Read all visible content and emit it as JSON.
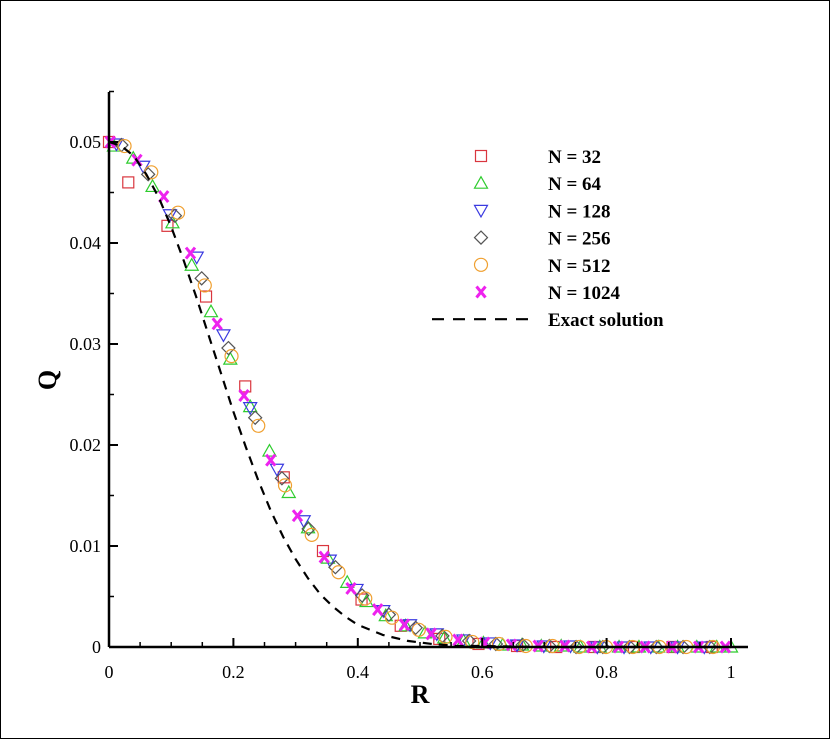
{
  "chart_data": {
    "type": "scatter",
    "title": "",
    "xlabel": "R",
    "ylabel": "Q",
    "xlim": [
      0,
      1
    ],
    "ylim": [
      0,
      0.05
    ],
    "xticks": [
      "0",
      "0.2",
      "0.4",
      "0.6",
      "0.8",
      "1"
    ],
    "yticks": [
      "0",
      "0.01",
      "0.02",
      "0.03",
      "0.04",
      "0.05"
    ],
    "legend_position": "top-right",
    "series": [
      {
        "name": "N = 32",
        "marker": "square",
        "color": "#d9363e",
        "points": [
          [
            0.0,
            0.05
          ],
          [
            0.031,
            0.046
          ],
          [
            0.094,
            0.0417
          ],
          [
            0.156,
            0.0347
          ],
          [
            0.219,
            0.0258
          ],
          [
            0.281,
            0.0168
          ],
          [
            0.344,
            0.0095
          ],
          [
            0.406,
            0.0047
          ],
          [
            0.469,
            0.0021
          ],
          [
            0.531,
            0.0008
          ],
          [
            0.594,
            0.0003
          ],
          [
            0.656,
            0.0001
          ],
          [
            0.719,
            0.0
          ],
          [
            0.781,
            0.0
          ],
          [
            0.844,
            0.0
          ],
          [
            0.906,
            0.0
          ],
          [
            0.969,
            0.0
          ]
        ]
      },
      {
        "name": "N = 64",
        "marker": "triangle-up",
        "color": "#2ecc2e",
        "points": [
          [
            0.008,
            0.0496
          ],
          [
            0.039,
            0.0484
          ],
          [
            0.07,
            0.0456
          ],
          [
            0.102,
            0.042
          ],
          [
            0.133,
            0.0378
          ],
          [
            0.164,
            0.0332
          ],
          [
            0.195,
            0.0285
          ],
          [
            0.227,
            0.0238
          ],
          [
            0.258,
            0.0194
          ],
          [
            0.289,
            0.0153
          ],
          [
            0.32,
            0.0118
          ],
          [
            0.352,
            0.0088
          ],
          [
            0.383,
            0.0064
          ],
          [
            0.414,
            0.0045
          ],
          [
            0.445,
            0.0031
          ],
          [
            0.477,
            0.0021
          ],
          [
            0.508,
            0.0014
          ],
          [
            0.539,
            0.0009
          ],
          [
            0.57,
            0.0006
          ],
          [
            0.602,
            0.0004
          ],
          [
            0.633,
            0.0002
          ],
          [
            0.664,
            0.0002
          ],
          [
            0.695,
            0.0001
          ],
          [
            0.727,
            0.0001
          ],
          [
            0.758,
            0.0
          ],
          [
            0.789,
            0.0
          ],
          [
            0.82,
            0.0
          ],
          [
            0.852,
            0.0
          ],
          [
            0.883,
            0.0
          ],
          [
            0.914,
            0.0
          ],
          [
            0.945,
            0.0
          ],
          [
            0.977,
            0.0
          ],
          [
            1.0,
            0.0
          ]
        ]
      },
      {
        "name": "N = 128",
        "marker": "triangle-down",
        "color": "#3a3ae0",
        "points": [
          [
            0.012,
            0.0498
          ],
          [
            0.055,
            0.0476
          ],
          [
            0.098,
            0.0428
          ],
          [
            0.141,
            0.0386
          ],
          [
            0.184,
            0.0309
          ],
          [
            0.227,
            0.0237
          ],
          [
            0.27,
            0.0176
          ],
          [
            0.313,
            0.0125
          ],
          [
            0.355,
            0.0086
          ],
          [
            0.398,
            0.0057
          ],
          [
            0.441,
            0.0036
          ],
          [
            0.484,
            0.0022
          ],
          [
            0.527,
            0.0013
          ],
          [
            0.57,
            0.0007
          ],
          [
            0.613,
            0.0004
          ],
          [
            0.656,
            0.0002
          ],
          [
            0.699,
            0.0001
          ],
          [
            0.742,
            0.0001
          ],
          [
            0.785,
            0.0
          ],
          [
            0.828,
            0.0
          ],
          [
            0.871,
            0.0
          ],
          [
            0.914,
            0.0
          ],
          [
            0.957,
            0.0
          ]
        ]
      },
      {
        "name": "N = 256",
        "marker": "diamond",
        "color": "#555555",
        "points": [
          [
            0.02,
            0.0497
          ],
          [
            0.063,
            0.0468
          ],
          [
            0.106,
            0.0427
          ],
          [
            0.149,
            0.0365
          ],
          [
            0.192,
            0.0296
          ],
          [
            0.235,
            0.0227
          ],
          [
            0.278,
            0.0167
          ],
          [
            0.321,
            0.0117
          ],
          [
            0.364,
            0.0079
          ],
          [
            0.407,
            0.0051
          ],
          [
            0.45,
            0.0032
          ],
          [
            0.493,
            0.0019
          ],
          [
            0.536,
            0.0011
          ],
          [
            0.579,
            0.0006
          ],
          [
            0.622,
            0.0003
          ],
          [
            0.665,
            0.0002
          ],
          [
            0.708,
            0.0001
          ],
          [
            0.751,
            0.0
          ],
          [
            0.794,
            0.0
          ],
          [
            0.837,
            0.0
          ],
          [
            0.88,
            0.0
          ],
          [
            0.923,
            0.0
          ],
          [
            0.966,
            0.0
          ]
        ]
      },
      {
        "name": "N = 512",
        "marker": "circle",
        "color": "#f0a030",
        "points": [
          [
            0.025,
            0.0496
          ],
          [
            0.068,
            0.047
          ],
          [
            0.111,
            0.043
          ],
          [
            0.154,
            0.0358
          ],
          [
            0.197,
            0.0288
          ],
          [
            0.24,
            0.0219
          ],
          [
            0.283,
            0.016
          ],
          [
            0.326,
            0.0111
          ],
          [
            0.369,
            0.0074
          ],
          [
            0.412,
            0.0048
          ],
          [
            0.455,
            0.0029
          ],
          [
            0.498,
            0.0017
          ],
          [
            0.541,
            0.001
          ],
          [
            0.584,
            0.0005
          ],
          [
            0.627,
            0.0003
          ],
          [
            0.67,
            0.0001
          ],
          [
            0.713,
            0.0001
          ],
          [
            0.756,
            0.0
          ],
          [
            0.799,
            0.0
          ],
          [
            0.842,
            0.0
          ],
          [
            0.885,
            0.0
          ],
          [
            0.928,
            0.0
          ],
          [
            0.971,
            0.0
          ]
        ]
      },
      {
        "name": "N = 1024",
        "marker": "x",
        "color": "#ee22ee",
        "points": [
          [
            0.002,
            0.05
          ],
          [
            0.045,
            0.0482
          ],
          [
            0.088,
            0.0446
          ],
          [
            0.131,
            0.039
          ],
          [
            0.174,
            0.032
          ],
          [
            0.217,
            0.0249
          ],
          [
            0.26,
            0.0185
          ],
          [
            0.303,
            0.013
          ],
          [
            0.346,
            0.0089
          ],
          [
            0.389,
            0.0058
          ],
          [
            0.432,
            0.0037
          ],
          [
            0.475,
            0.0022
          ],
          [
            0.518,
            0.0013
          ],
          [
            0.561,
            0.0007
          ],
          [
            0.604,
            0.0004
          ],
          [
            0.647,
            0.0002
          ],
          [
            0.69,
            0.0001
          ],
          [
            0.733,
            0.0001
          ],
          [
            0.776,
            0.0
          ],
          [
            0.819,
            0.0
          ],
          [
            0.862,
            0.0
          ],
          [
            0.905,
            0.0
          ],
          [
            0.948,
            0.0
          ],
          [
            0.991,
            0.0
          ]
        ]
      },
      {
        "name": "Exact solution",
        "marker": "dashed-line",
        "color": "#000000",
        "points": [
          [
            0.0,
            0.05
          ],
          [
            0.02,
            0.0496
          ],
          [
            0.04,
            0.0486
          ],
          [
            0.06,
            0.0468
          ],
          [
            0.08,
            0.0445
          ],
          [
            0.1,
            0.0416
          ],
          [
            0.12,
            0.0383
          ],
          [
            0.14,
            0.0347
          ],
          [
            0.16,
            0.0309
          ],
          [
            0.18,
            0.0271
          ],
          [
            0.2,
            0.0233
          ],
          [
            0.22,
            0.0198
          ],
          [
            0.24,
            0.0165
          ],
          [
            0.26,
            0.0135
          ],
          [
            0.28,
            0.0109
          ],
          [
            0.3,
            0.0087
          ],
          [
            0.32,
            0.0068
          ],
          [
            0.34,
            0.0052
          ],
          [
            0.36,
            0.004
          ],
          [
            0.38,
            0.003
          ],
          [
            0.4,
            0.0022
          ],
          [
            0.44,
            0.0012
          ],
          [
            0.48,
            0.0006
          ],
          [
            0.52,
            0.0003
          ],
          [
            0.56,
            0.0001
          ],
          [
            0.6,
            0.0001
          ],
          [
            0.7,
            0.0
          ],
          [
            0.8,
            0.0
          ],
          [
            0.9,
            0.0
          ],
          [
            1.0,
            0.0
          ]
        ]
      }
    ]
  }
}
